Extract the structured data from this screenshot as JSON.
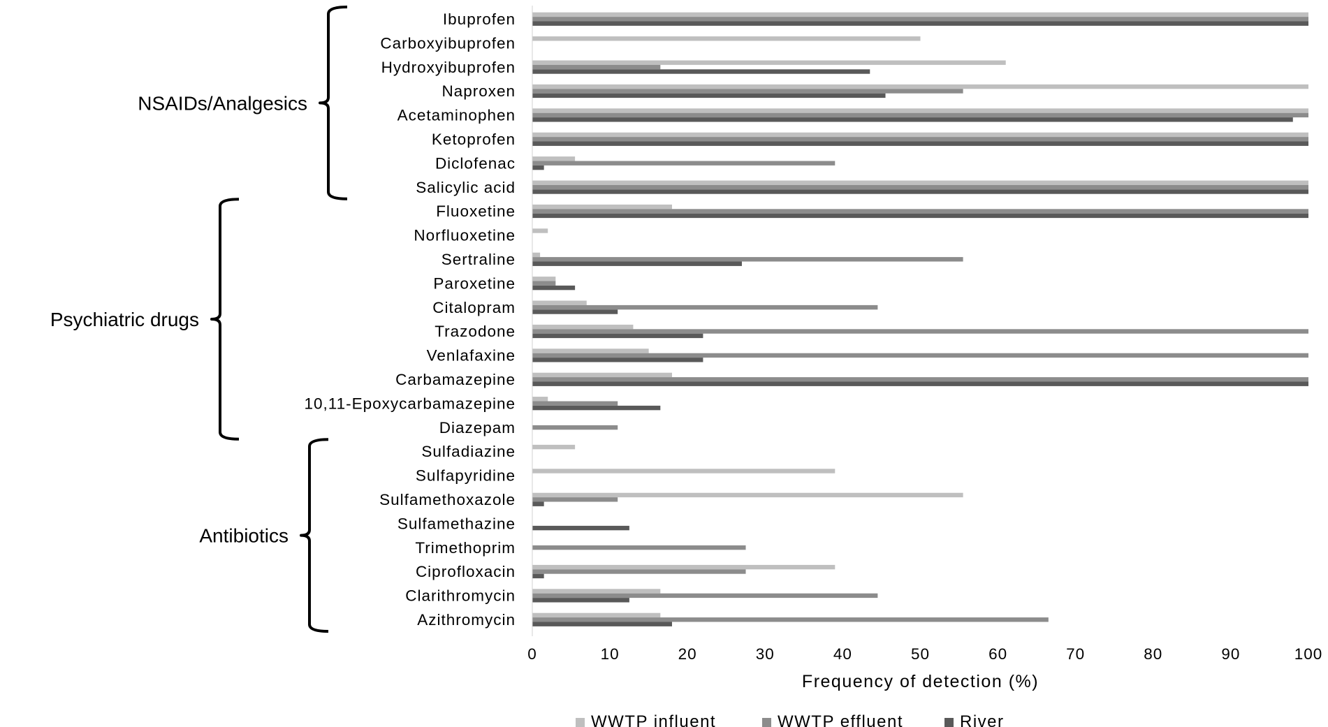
{
  "chart_data": {
    "type": "bar",
    "orientation": "horizontal",
    "title": "",
    "xlabel": "Frequency of detection (%)",
    "ylabel": "",
    "xlim": [
      0,
      100
    ],
    "xticks": [
      0,
      10,
      20,
      30,
      40,
      50,
      60,
      70,
      80,
      90,
      100
    ],
    "grid": false,
    "legend_position": "bottom",
    "categories": [
      "Ibuprofen",
      "Carboxyibuprofen",
      "Hydroxyibuprofen",
      "Naproxen",
      "Acetaminophen",
      "Ketoprofen",
      "Diclofenac",
      "Salicylic acid",
      "Fluoxetine",
      "Norfluoxetine",
      "Sertraline",
      "Paroxetine",
      "Citalopram",
      "Trazodone",
      "Venlafaxine",
      "Carbamazepine",
      "10,11-Epoxycarbamazepine",
      "Diazepam",
      "Sulfadiazine",
      "Sulfapyridine",
      "Sulfamethoxazole",
      "Sulfamethazine",
      "Trimethoprim",
      "Ciprofloxacin",
      "Clarithromycin",
      "Azithromycin"
    ],
    "series": [
      {
        "name": "WWTP influent",
        "color": "#bfbfbf",
        "values": [
          100,
          50,
          61,
          100,
          100,
          100,
          5.5,
          100,
          18,
          2,
          1,
          3,
          7,
          13,
          15,
          18,
          2,
          0,
          5.5,
          39,
          55.5,
          0,
          0,
          39,
          16.5,
          16.5
        ]
      },
      {
        "name": "WWTP effluent",
        "color": "#8c8c8c",
        "values": [
          100,
          0,
          16.5,
          55.5,
          100,
          100,
          39,
          100,
          100,
          0,
          55.5,
          3,
          44.5,
          100,
          100,
          100,
          11,
          11,
          0,
          0,
          11,
          0,
          27.5,
          27.5,
          44.5,
          66.5
        ]
      },
      {
        "name": "River",
        "color": "#595959",
        "values": [
          100,
          0,
          43.5,
          45.5,
          98,
          100,
          1.5,
          100,
          100,
          0,
          27,
          5.5,
          11,
          22,
          22,
          100,
          16.5,
          0,
          0,
          0,
          1.5,
          12.5,
          0,
          1.5,
          12.5,
          18
        ]
      }
    ],
    "groups": [
      {
        "label": "NSAIDs/Analgesics",
        "first": 0,
        "last": 7
      },
      {
        "label": "Psychiatric drugs",
        "first": 8,
        "last": 17
      },
      {
        "label": "Antibiotics",
        "first": 18,
        "last": 25
      }
    ]
  }
}
